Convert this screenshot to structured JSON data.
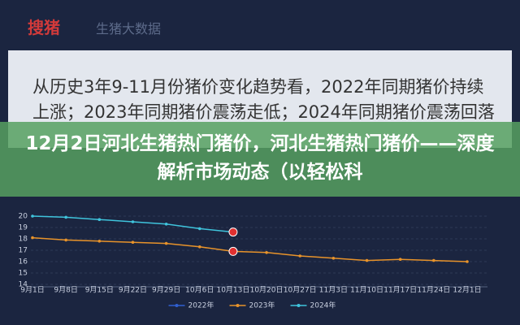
{
  "header": {
    "logo": "搜猪",
    "brand": "生猪大数据"
  },
  "paragraph": "从历史3年9-11月份猪价变化趋势看，2022年同期猪价持续上涨；2023年同期猪价震荡走低；2024年同期猪价震荡回落",
  "banner_title": "12月2日河北生猪热门猪价，河北生猪热门猪价——深度解析市场动态（以轻松科",
  "chart_data": {
    "type": "line",
    "categories": [
      "9月1日",
      "9月8日",
      "9月15日",
      "9月22日",
      "9月29日",
      "10月6日",
      "10月13日",
      "10月20日",
      "10月27日",
      "11月3日",
      "11月10日",
      "11月17日",
      "11月24日",
      "12月1日"
    ],
    "series": [
      {
        "name": "2022年",
        "color": "#2f5fd0",
        "values": [
          null,
          null,
          null,
          null,
          null,
          null,
          null,
          null,
          null,
          null,
          null,
          null,
          null,
          null
        ]
      },
      {
        "name": "2023年",
        "color": "#e8932a",
        "values": [
          18.1,
          17.9,
          17.8,
          17.7,
          17.6,
          17.3,
          16.9,
          16.8,
          16.5,
          16.3,
          16.1,
          16.2,
          16.1,
          16.0
        ]
      },
      {
        "name": "2024年",
        "color": "#3fc4dc",
        "values": [
          20.0,
          19.9,
          19.7,
          19.5,
          19.3,
          18.9,
          18.6,
          null,
          null,
          null,
          null,
          null,
          null,
          null
        ]
      }
    ],
    "ylim": [
      14,
      20
    ],
    "yticks": [
      14,
      15,
      16,
      17,
      18,
      19,
      20
    ],
    "grid": true,
    "legend": "bottom"
  }
}
